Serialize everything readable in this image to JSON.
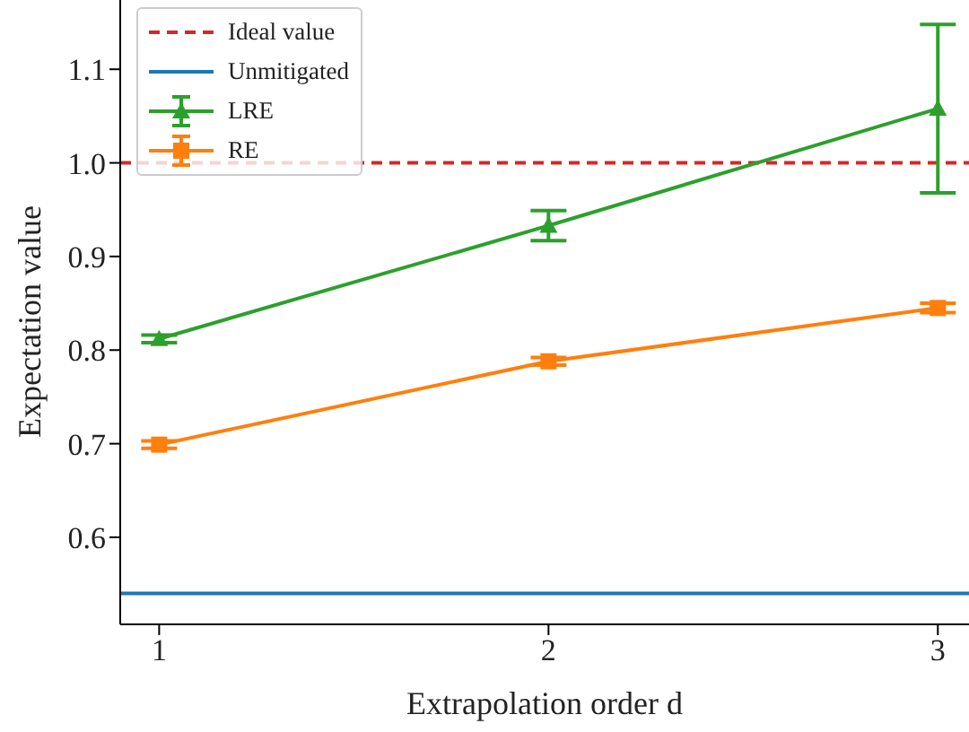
{
  "chart_data": {
    "type": "line",
    "xlabel": "Extrapolation order d",
    "ylabel": "Expectation value",
    "xlim": [
      0.9,
      3.08
    ],
    "xticks": [
      1,
      2,
      3
    ],
    "ylim": [
      0.507,
      1.174
    ],
    "yticks": [
      0.6,
      0.7,
      0.8,
      0.9,
      {
        "value": 1.0,
        "label": "1.0"
      },
      1.1
    ],
    "grid": false,
    "legend": "top left",
    "line_style": "solid",
    "ref_lines": [
      {
        "axis": "y",
        "value": 1.0,
        "label": "Ideal value",
        "color": "#d62728",
        "line_style": "dashed"
      },
      {
        "axis": "y",
        "value": 0.54,
        "label": "Unmitigated",
        "color": "#1f77b4",
        "line_style": "solid"
      }
    ],
    "series": [
      {
        "name": "LRE",
        "color": "#2ca02c",
        "marker": "triangle",
        "x": [
          1,
          2,
          3
        ],
        "values": [
          0.812,
          0.933,
          1.058
        ],
        "errors": [
          0.004,
          0.016,
          0.09
        ]
      },
      {
        "name": "RE",
        "color": "#ff7f0e",
        "marker": "square",
        "x": [
          1,
          2,
          3
        ],
        "values": [
          0.699,
          0.788,
          0.845
        ],
        "errors": [
          0.004,
          0.004,
          0.005
        ]
      }
    ]
  }
}
